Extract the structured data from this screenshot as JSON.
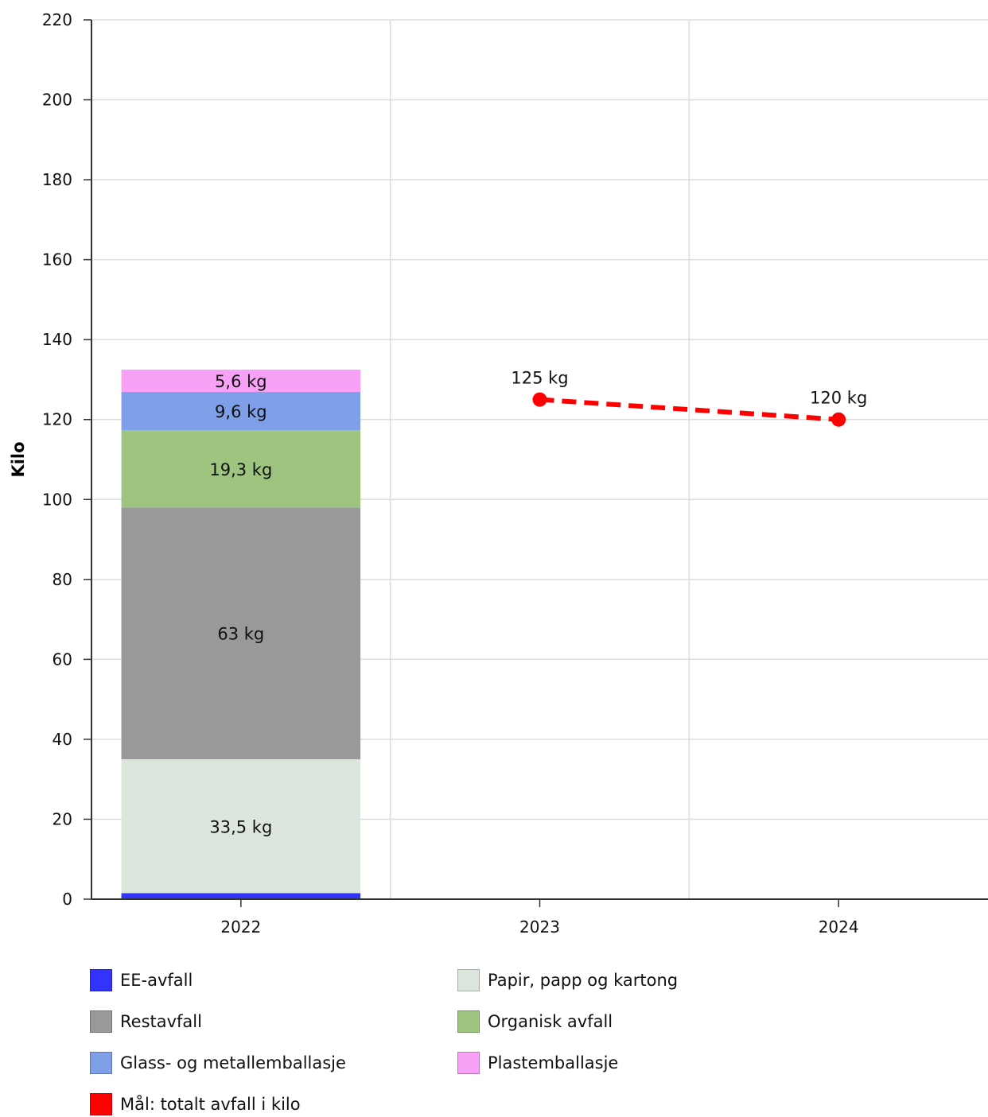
{
  "chart_data": {
    "type": "bar",
    "ylabel": "Kilo",
    "ylim": [
      0,
      220
    ],
    "yticks": [
      0,
      20,
      40,
      60,
      80,
      100,
      120,
      140,
      160,
      180,
      200,
      220
    ],
    "categories": [
      "2022",
      "2023",
      "2024"
    ],
    "stacked": true,
    "grid": true,
    "legend_position": "bottom",
    "series": [
      {
        "name": "EE-avfall",
        "color": "#3333ff",
        "values": [
          1.5,
          null,
          null
        ],
        "labels": [
          "",
          "",
          ""
        ]
      },
      {
        "name": "Papir, papp og kartong",
        "color": "#dce6dc",
        "values": [
          33.5,
          null,
          null
        ],
        "labels": [
          "33,5 kg",
          "",
          ""
        ]
      },
      {
        "name": "Restavfall",
        "color": "#999999",
        "values": [
          63,
          null,
          null
        ],
        "labels": [
          "63 kg",
          "",
          ""
        ]
      },
      {
        "name": "Organisk avfall",
        "color": "#9dc580",
        "values": [
          19.3,
          null,
          null
        ],
        "labels": [
          "19,3 kg",
          "",
          ""
        ]
      },
      {
        "name": "Glass- og metallemballasje",
        "color": "#7f9fe8",
        "values": [
          9.6,
          null,
          null
        ],
        "labels": [
          "9,6 kg",
          "",
          ""
        ]
      },
      {
        "name": "Plastemballasje",
        "color": "#f7a1f7",
        "values": [
          5.6,
          null,
          null
        ],
        "labels": [
          "5,6 kg",
          "",
          ""
        ]
      }
    ],
    "target": {
      "name": "Mål: totalt avfall i kilo",
      "color": "#ff0000",
      "style": "dashed",
      "points": [
        {
          "x": "2023",
          "y": 125,
          "label": "125 kg"
        },
        {
          "x": "2024",
          "y": 120,
          "label": "120 kg"
        }
      ]
    }
  },
  "legend": [
    {
      "label": "EE-avfall",
      "color": "#3333ff"
    },
    {
      "label": "Papir, papp og kartong",
      "color": "#dce6dc"
    },
    {
      "label": "Restavfall",
      "color": "#999999"
    },
    {
      "label": "Organisk avfall",
      "color": "#9dc580"
    },
    {
      "label": "Glass- og metallemballasje",
      "color": "#7f9fe8"
    },
    {
      "label": "Plastemballasje",
      "color": "#f7a1f7"
    },
    {
      "label": "Mål: totalt avfall i kilo",
      "color": "#ff0000"
    }
  ]
}
